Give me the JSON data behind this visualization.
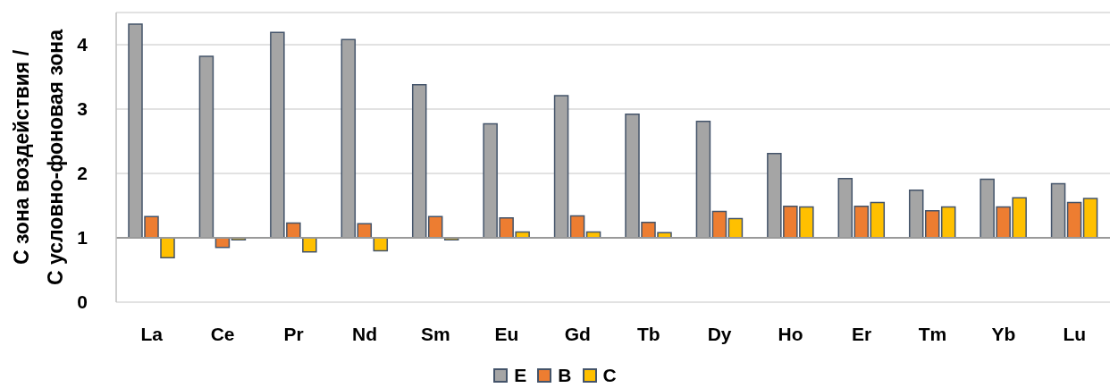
{
  "chart_data": {
    "type": "bar",
    "ylabel": "C зона воздействия /\nC условно-фоновая зона",
    "categories": [
      "La",
      "Ce",
      "Pr",
      "Nd",
      "Sm",
      "Eu",
      "Gd",
      "Tb",
      "Dy",
      "Ho",
      "Er",
      "Tm",
      "Yb",
      "Lu"
    ],
    "series": [
      {
        "name": "E",
        "color": "#a5a5a5",
        "base": [
          1,
          1,
          1,
          1,
          1,
          1,
          1,
          1,
          1,
          1,
          1,
          1,
          1,
          1
        ],
        "values": [
          3.32,
          2.82,
          3.19,
          3.08,
          2.38,
          1.77,
          2.21,
          1.92,
          1.81,
          1.31,
          0.92,
          0.74,
          0.91,
          0.84
        ]
      },
      {
        "name": "B",
        "color": "#ed7d31",
        "base": [
          1,
          1,
          1,
          1,
          1,
          1,
          1,
          1,
          1,
          1,
          1,
          1,
          1,
          1
        ],
        "values": [
          0.33,
          -0.15,
          0.23,
          0.22,
          0.33,
          0.31,
          0.34,
          0.24,
          0.41,
          0.49,
          0.49,
          0.42,
          0.48,
          0.55
        ]
      },
      {
        "name": "C",
        "color": "#ffc000",
        "base": [
          1,
          1,
          1,
          1,
          1,
          1,
          1,
          1,
          1,
          1,
          1,
          1,
          1,
          1
        ],
        "values": [
          -0.31,
          -0.03,
          -0.22,
          -0.2,
          -0.03,
          0.09,
          0.09,
          0.08,
          0.3,
          0.48,
          0.55,
          0.48,
          0.62,
          0.61
        ]
      }
    ],
    "ref_lines": [
      {
        "axis": "y",
        "value": 1,
        "color": "#999999"
      }
    ],
    "ylim": [
      0,
      4.5
    ],
    "yticks": [
      0,
      1,
      2,
      3,
      4
    ],
    "grid": "y",
    "legend": "bottom"
  }
}
